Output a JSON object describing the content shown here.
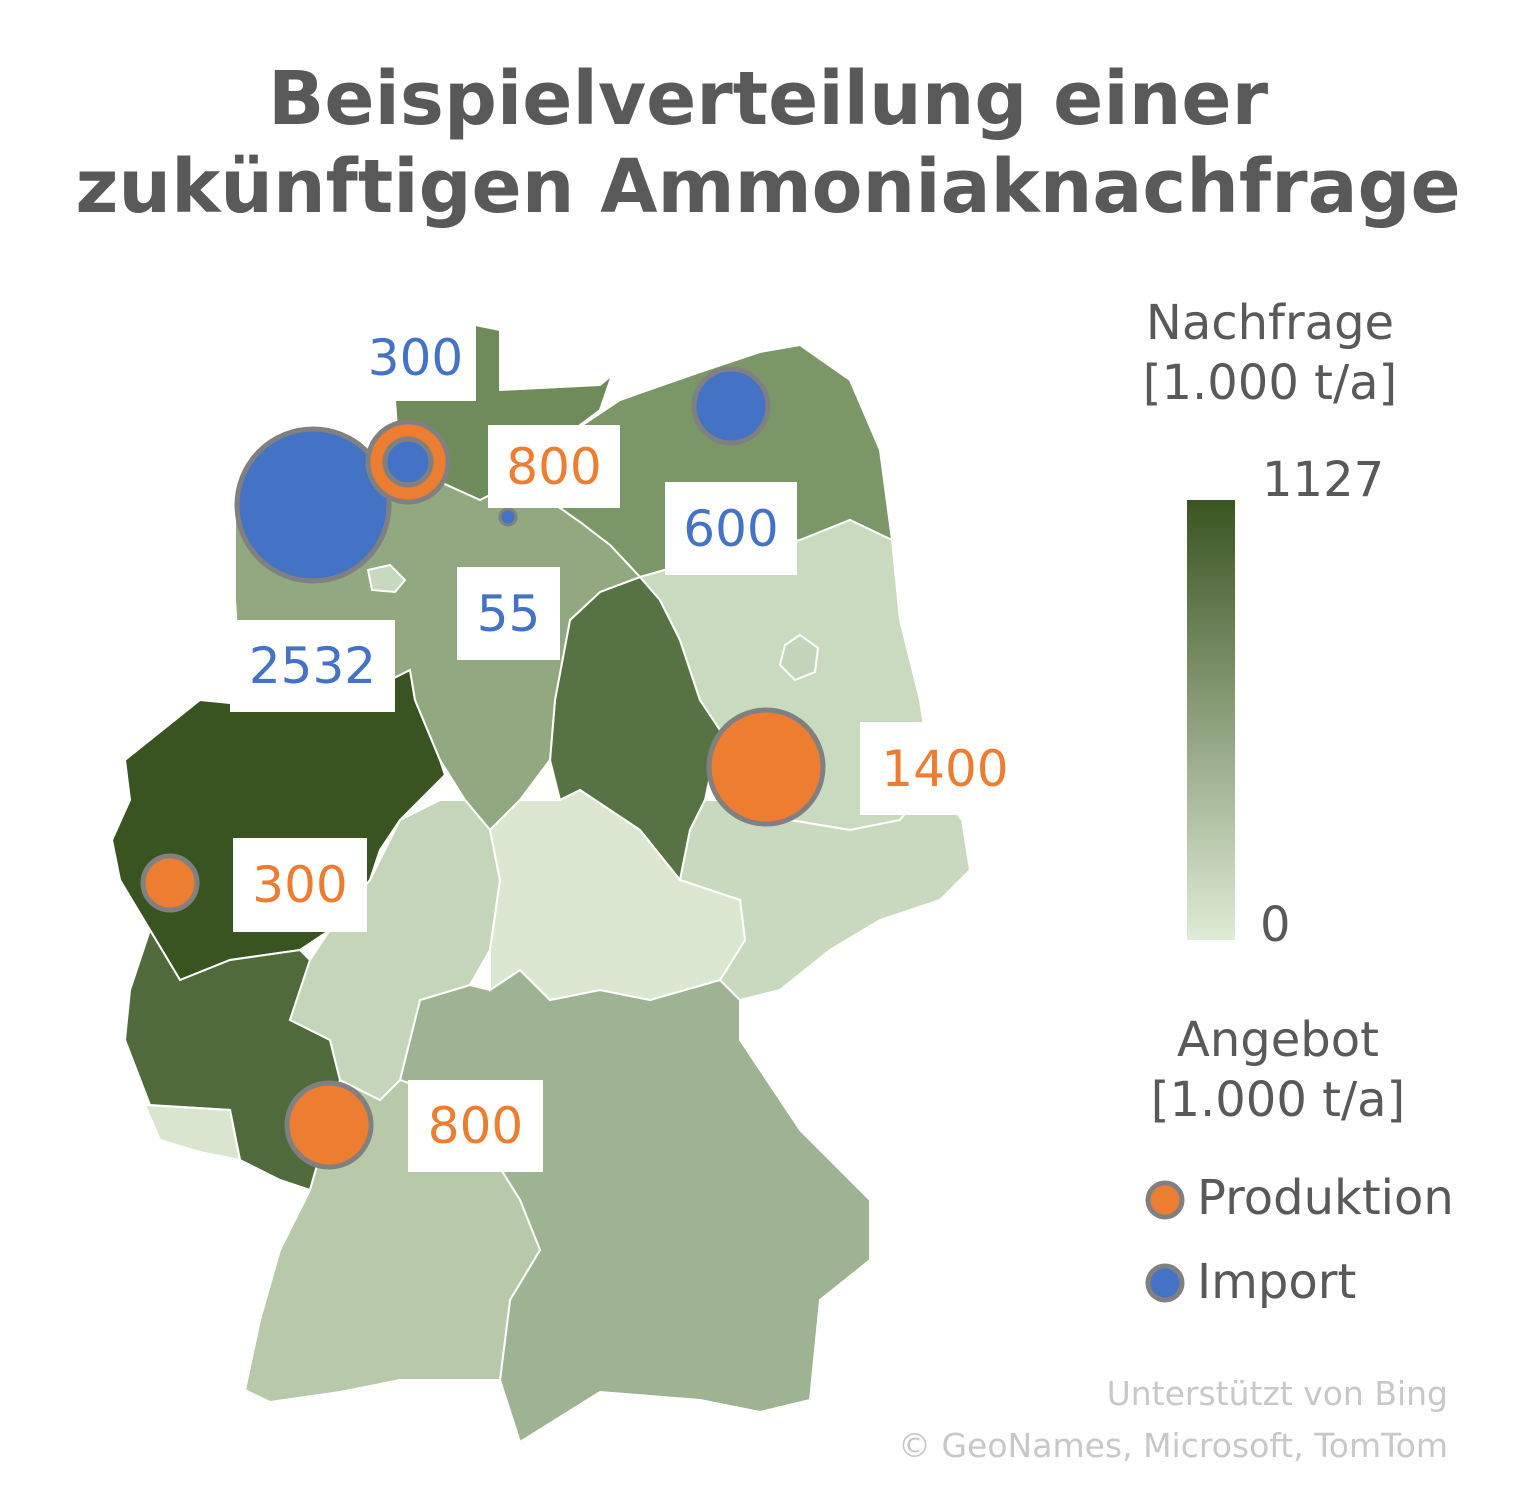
{
  "title_line1": "Beispielverteilung einer",
  "title_line2": "zukünftigen Ammoniaknachfrage",
  "colors": {
    "produktion": "#ed7d31",
    "import": "#4472c4",
    "scale_max": "#3a5421",
    "scale_min": "#dfecd6",
    "bubble_border": "#808080"
  },
  "legend": {
    "demand_title": "Nachfrage",
    "demand_unit": "[1.000 t/a]",
    "demand_max": "1127",
    "demand_min": "0",
    "supply_title": "Angebot",
    "supply_unit": "[1.000 t/a]",
    "produktion_label": "Produktion",
    "import_label": "Import"
  },
  "regions": [
    {
      "name": "Nordrhein-Westfalen",
      "fill": "#3a5421"
    },
    {
      "name": "Rheinland-Pfalz",
      "fill": "#506a3b"
    },
    {
      "name": "Sachsen-Anhalt",
      "fill": "#587343"
    },
    {
      "name": "Schleswig-Holstein",
      "fill": "#6f8b59"
    },
    {
      "name": "Mecklenburg-Vorpommern",
      "fill": "#7c9767"
    },
    {
      "name": "Niedersachsen",
      "fill": "#92a880"
    },
    {
      "name": "Bayern",
      "fill": "#9eb391"
    },
    {
      "name": "Baden-Württemberg",
      "fill": "#b7c9a9"
    },
    {
      "name": "Hessen",
      "fill": "#c5d5ba"
    },
    {
      "name": "Brandenburg",
      "fill": "#cadabf"
    },
    {
      "name": "Sachsen",
      "fill": "#c9d9be"
    },
    {
      "name": "Thüringen",
      "fill": "#dbe7d1"
    },
    {
      "name": "Saarland",
      "fill": "#d9e5cf"
    },
    {
      "name": "Berlin",
      "fill": "#c4d4ba"
    },
    {
      "name": "Bremen",
      "fill": "#c9d9bf"
    }
  ],
  "supply_points": [
    {
      "type": "import",
      "value": 2532,
      "label": "2532"
    },
    {
      "type": "import",
      "value": 300,
      "label": "300"
    },
    {
      "type": "produktion",
      "value": 800,
      "label": "800"
    },
    {
      "type": "import",
      "value": 55,
      "label": "55"
    },
    {
      "type": "import",
      "value": 600,
      "label": "600"
    },
    {
      "type": "produktion",
      "value": 1400,
      "label": "1400"
    },
    {
      "type": "produktion",
      "value": 300,
      "label": "300"
    },
    {
      "type": "produktion",
      "value": 800,
      "label": "800"
    }
  ],
  "credits": {
    "line1": "Unterstützt von Bing",
    "line2": "© GeoNames, Microsoft, TomTom"
  }
}
